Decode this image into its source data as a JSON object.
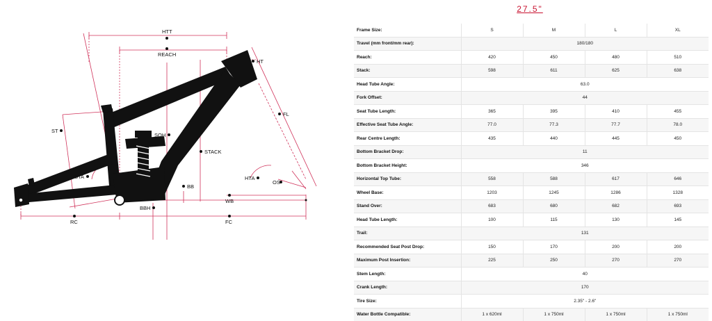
{
  "title": "27.5\"",
  "diagram": {
    "labels": {
      "htt": "HTT",
      "reach": "REACH",
      "ht": "HT",
      "fl": "FL",
      "st": "ST",
      "soh": "SOH",
      "stack": "STACK",
      "sta": "STA",
      "bb": "BB",
      "hta": "HTA",
      "os": "OS",
      "wb": "WB",
      "bbh": "BBH",
      "rc": "RC",
      "fc": "FC"
    },
    "colors": {
      "frame": "#111111",
      "dimension": "#d0325a",
      "dot": "#111111"
    }
  },
  "table": {
    "header_label": "Frame Size:",
    "sizes": [
      "S",
      "M",
      "L",
      "XL"
    ],
    "rows": [
      {
        "label": "Travel (mm front/mm rear):",
        "span": "180/180"
      },
      {
        "label": "Reach:",
        "values": [
          "420",
          "450",
          "480",
          "510"
        ]
      },
      {
        "label": "Stack:",
        "values": [
          "598",
          "611",
          "625",
          "638"
        ]
      },
      {
        "label": "Head Tube Angle:",
        "span": "63.0"
      },
      {
        "label": "Fork Offset:",
        "span": "44"
      },
      {
        "label": "Seat Tube Length:",
        "values": [
          "365",
          "395",
          "410",
          "455"
        ]
      },
      {
        "label": "Effective Seat Tube Angle:",
        "values": [
          "77.0",
          "77.3",
          "77.7",
          "78.0"
        ]
      },
      {
        "label": "Rear Centre Length:",
        "values": [
          "435",
          "440",
          "445",
          "450"
        ]
      },
      {
        "label": "Bottom Bracket Drop:",
        "span": "11"
      },
      {
        "label": "Bottom Bracket Height:",
        "span": "346"
      },
      {
        "label": "Horizontal Top Tube:",
        "values": [
          "558",
          "588",
          "617",
          "646"
        ]
      },
      {
        "label": "Wheel Base:",
        "values": [
          "1203",
          "1245",
          "1286",
          "1328"
        ]
      },
      {
        "label": "Stand Over:",
        "values": [
          "683",
          "680",
          "682",
          "693"
        ]
      },
      {
        "label": "Head Tube Length:",
        "values": [
          "100",
          "115",
          "130",
          "145"
        ]
      },
      {
        "label": "Trail:",
        "span": "131"
      },
      {
        "label": "Recommended Seat Post Drop:",
        "values": [
          "150",
          "170",
          "200",
          "200"
        ]
      },
      {
        "label": "Maximum Post Insertion:",
        "values": [
          "225",
          "250",
          "270",
          "270"
        ]
      },
      {
        "label": "Stem Length:",
        "span": "40"
      },
      {
        "label": "Crank Length:",
        "span": "170"
      },
      {
        "label": "Tire Size:",
        "span": "2.35\" - 2.6\""
      },
      {
        "label": "Water Bottle Compatible:",
        "values": [
          "1 x 620ml",
          "1 x 750ml",
          "1 x 750ml",
          "1 x 750ml"
        ]
      }
    ]
  }
}
